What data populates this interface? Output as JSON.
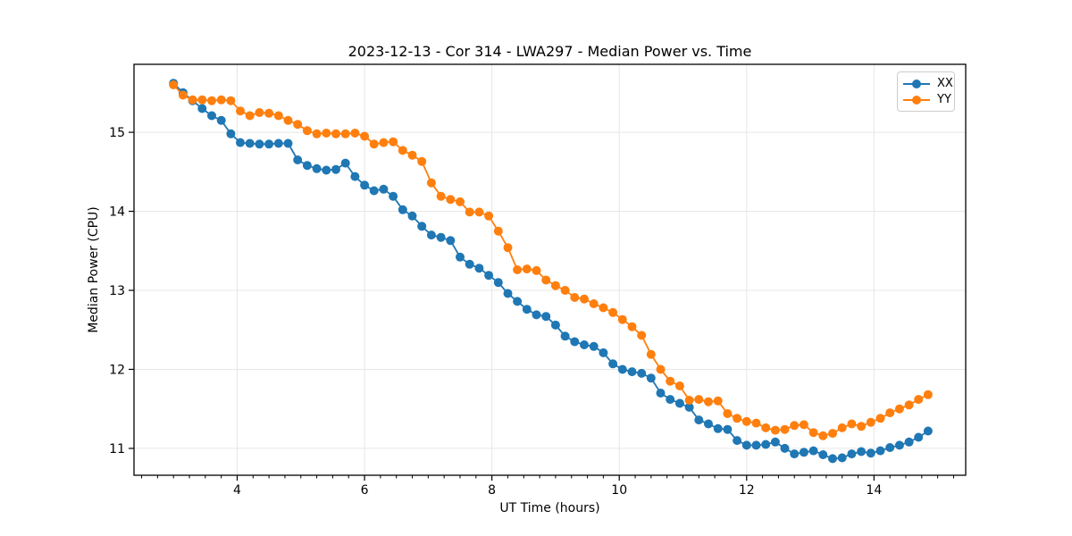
{
  "chart_data": {
    "type": "line",
    "title": "2023-12-13 - Cor 314 - LWA297 - Median Power vs. Time",
    "xlabel": "UT Time (hours)",
    "ylabel": "Median Power (CPU)",
    "grid": true,
    "legend_position": "upper right",
    "marker": "o",
    "xlim": [
      2.38,
      15.44
    ],
    "ylim": [
      10.66,
      15.86
    ],
    "xticks": [
      4,
      6,
      8,
      10,
      12,
      14
    ],
    "yticks": [
      11,
      12,
      13,
      14,
      15
    ],
    "x_minor_step": 0.25,
    "x": [
      3.0,
      3.15,
      3.3,
      3.45,
      3.6,
      3.75,
      3.9,
      4.05,
      4.2,
      4.35,
      4.5,
      4.65,
      4.8,
      4.95,
      5.1,
      5.25,
      5.4,
      5.55,
      5.7,
      5.85,
      6.0,
      6.15,
      6.3,
      6.45,
      6.6,
      6.75,
      6.9,
      7.05,
      7.2,
      7.35,
      7.5,
      7.65,
      7.8,
      7.95,
      8.1,
      8.25,
      8.4,
      8.55,
      8.7,
      8.85,
      9.0,
      9.15,
      9.3,
      9.45,
      9.6,
      9.75,
      9.9,
      10.05,
      10.2,
      10.35,
      10.5,
      10.65,
      10.8,
      10.95,
      11.1,
      11.25,
      11.4,
      11.55,
      11.7,
      11.85,
      12.0,
      12.15,
      12.3,
      12.45,
      12.6,
      12.75,
      12.9,
      13.05,
      13.2,
      13.35,
      13.5,
      13.65,
      13.8,
      13.95,
      14.1,
      14.25,
      14.4,
      14.55,
      14.7,
      14.85
    ],
    "series": [
      {
        "name": "XX",
        "color": "#1f77b4",
        "values": [
          15.62,
          15.5,
          15.4,
          15.3,
          15.21,
          15.15,
          14.98,
          14.87,
          14.86,
          14.85,
          14.85,
          14.86,
          14.86,
          14.65,
          14.58,
          14.54,
          14.52,
          14.53,
          14.61,
          14.44,
          14.33,
          14.26,
          14.28,
          14.19,
          14.02,
          13.94,
          13.81,
          13.7,
          13.67,
          13.63,
          13.42,
          13.33,
          13.28,
          13.19,
          13.1,
          12.96,
          12.86,
          12.76,
          12.69,
          12.67,
          12.56,
          12.42,
          12.35,
          12.31,
          12.29,
          12.21,
          12.07,
          12.0,
          11.97,
          11.95,
          11.89,
          11.7,
          11.62,
          11.57,
          11.52,
          11.36,
          11.31,
          11.25,
          11.24,
          11.1,
          11.04,
          11.04,
          11.05,
          11.08,
          11.0,
          10.93,
          10.95,
          10.97,
          10.92,
          10.87,
          10.88,
          10.93,
          10.96,
          10.94,
          10.97,
          11.01,
          11.04,
          11.08,
          11.14,
          11.22
        ]
      },
      {
        "name": "YY",
        "color": "#ff7f0e",
        "values": [
          15.6,
          15.47,
          15.41,
          15.41,
          15.4,
          15.41,
          15.4,
          15.27,
          15.21,
          15.25,
          15.24,
          15.21,
          15.15,
          15.1,
          15.02,
          14.98,
          14.99,
          14.98,
          14.98,
          14.99,
          14.95,
          14.85,
          14.87,
          14.88,
          14.77,
          14.71,
          14.63,
          14.36,
          14.19,
          14.15,
          14.12,
          13.99,
          13.99,
          13.94,
          13.75,
          13.54,
          13.26,
          13.27,
          13.25,
          13.13,
          13.06,
          13.0,
          12.91,
          12.89,
          12.83,
          12.78,
          12.72,
          12.63,
          12.54,
          12.43,
          12.19,
          12.0,
          11.85,
          11.79,
          11.61,
          11.62,
          11.59,
          11.6,
          11.44,
          11.38,
          11.34,
          11.32,
          11.26,
          11.23,
          11.24,
          11.29,
          11.3,
          11.2,
          11.16,
          11.19,
          11.26,
          11.31,
          11.28,
          11.33,
          11.38,
          11.45,
          11.5,
          11.55,
          11.62,
          11.68
        ]
      }
    ]
  },
  "colors": {
    "grid": "#e7e7e7",
    "spine": "#000000",
    "tick_label": "#000000",
    "background": "#ffffff"
  }
}
